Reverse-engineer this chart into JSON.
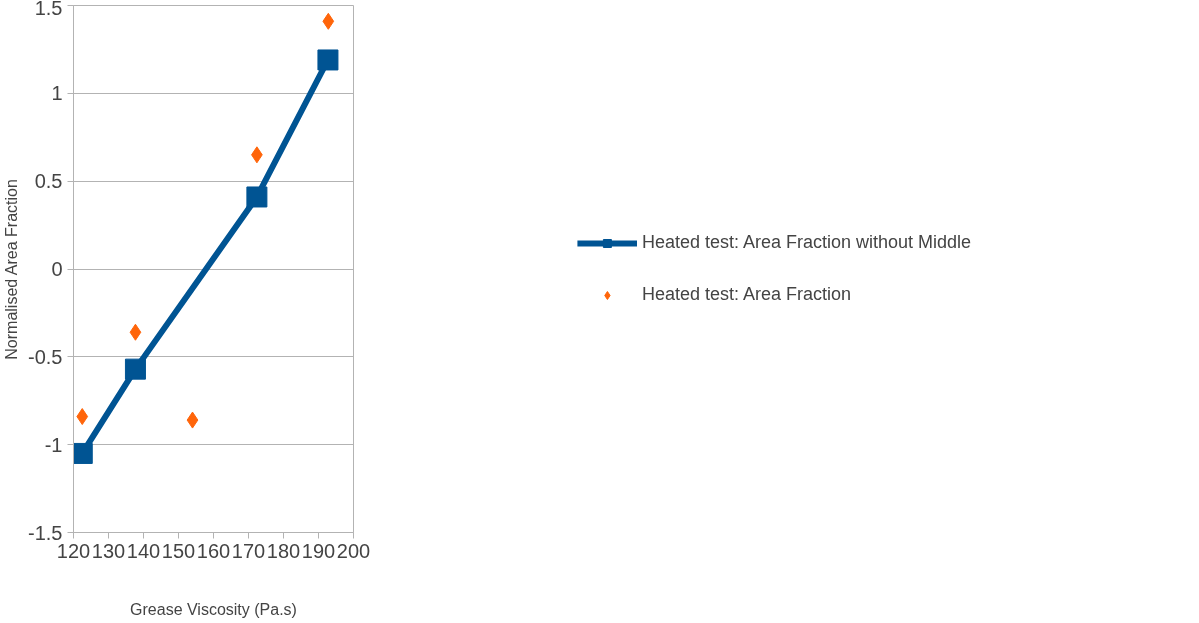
{
  "chart_data": {
    "type": "line",
    "xlabel": "Grease Viscosity (Pa.s)",
    "ylabel": "Normalised Area Fraction",
    "xlim": [
      120,
      200
    ],
    "xticks": [
      120,
      130,
      140,
      150,
      160,
      170,
      180,
      190,
      200
    ],
    "ylim": [
      -1.5,
      1.5
    ],
    "yticks": [
      -1.5,
      -1,
      -0.5,
      0,
      0.5,
      1,
      1.5
    ],
    "grid": "y",
    "legend": "right",
    "series": [
      {
        "name": "Heated test: Area Fraction without Middle",
        "color": "#005493",
        "marker": "square",
        "line_style": "solid",
        "x": [
          122.5,
          137.7,
          172.4,
          192.7
        ],
        "values": [
          -1.05,
          -0.57,
          0.41,
          1.19
        ]
      },
      {
        "name": "Heated test: Area Fraction",
        "type": "scatter",
        "color": "#ff650a",
        "marker": "diamond",
        "x": [
          122.5,
          137.7,
          154.0,
          172.4,
          192.8
        ],
        "values": [
          -0.84,
          -0.36,
          -0.86,
          0.65,
          1.41
        ]
      }
    ]
  }
}
